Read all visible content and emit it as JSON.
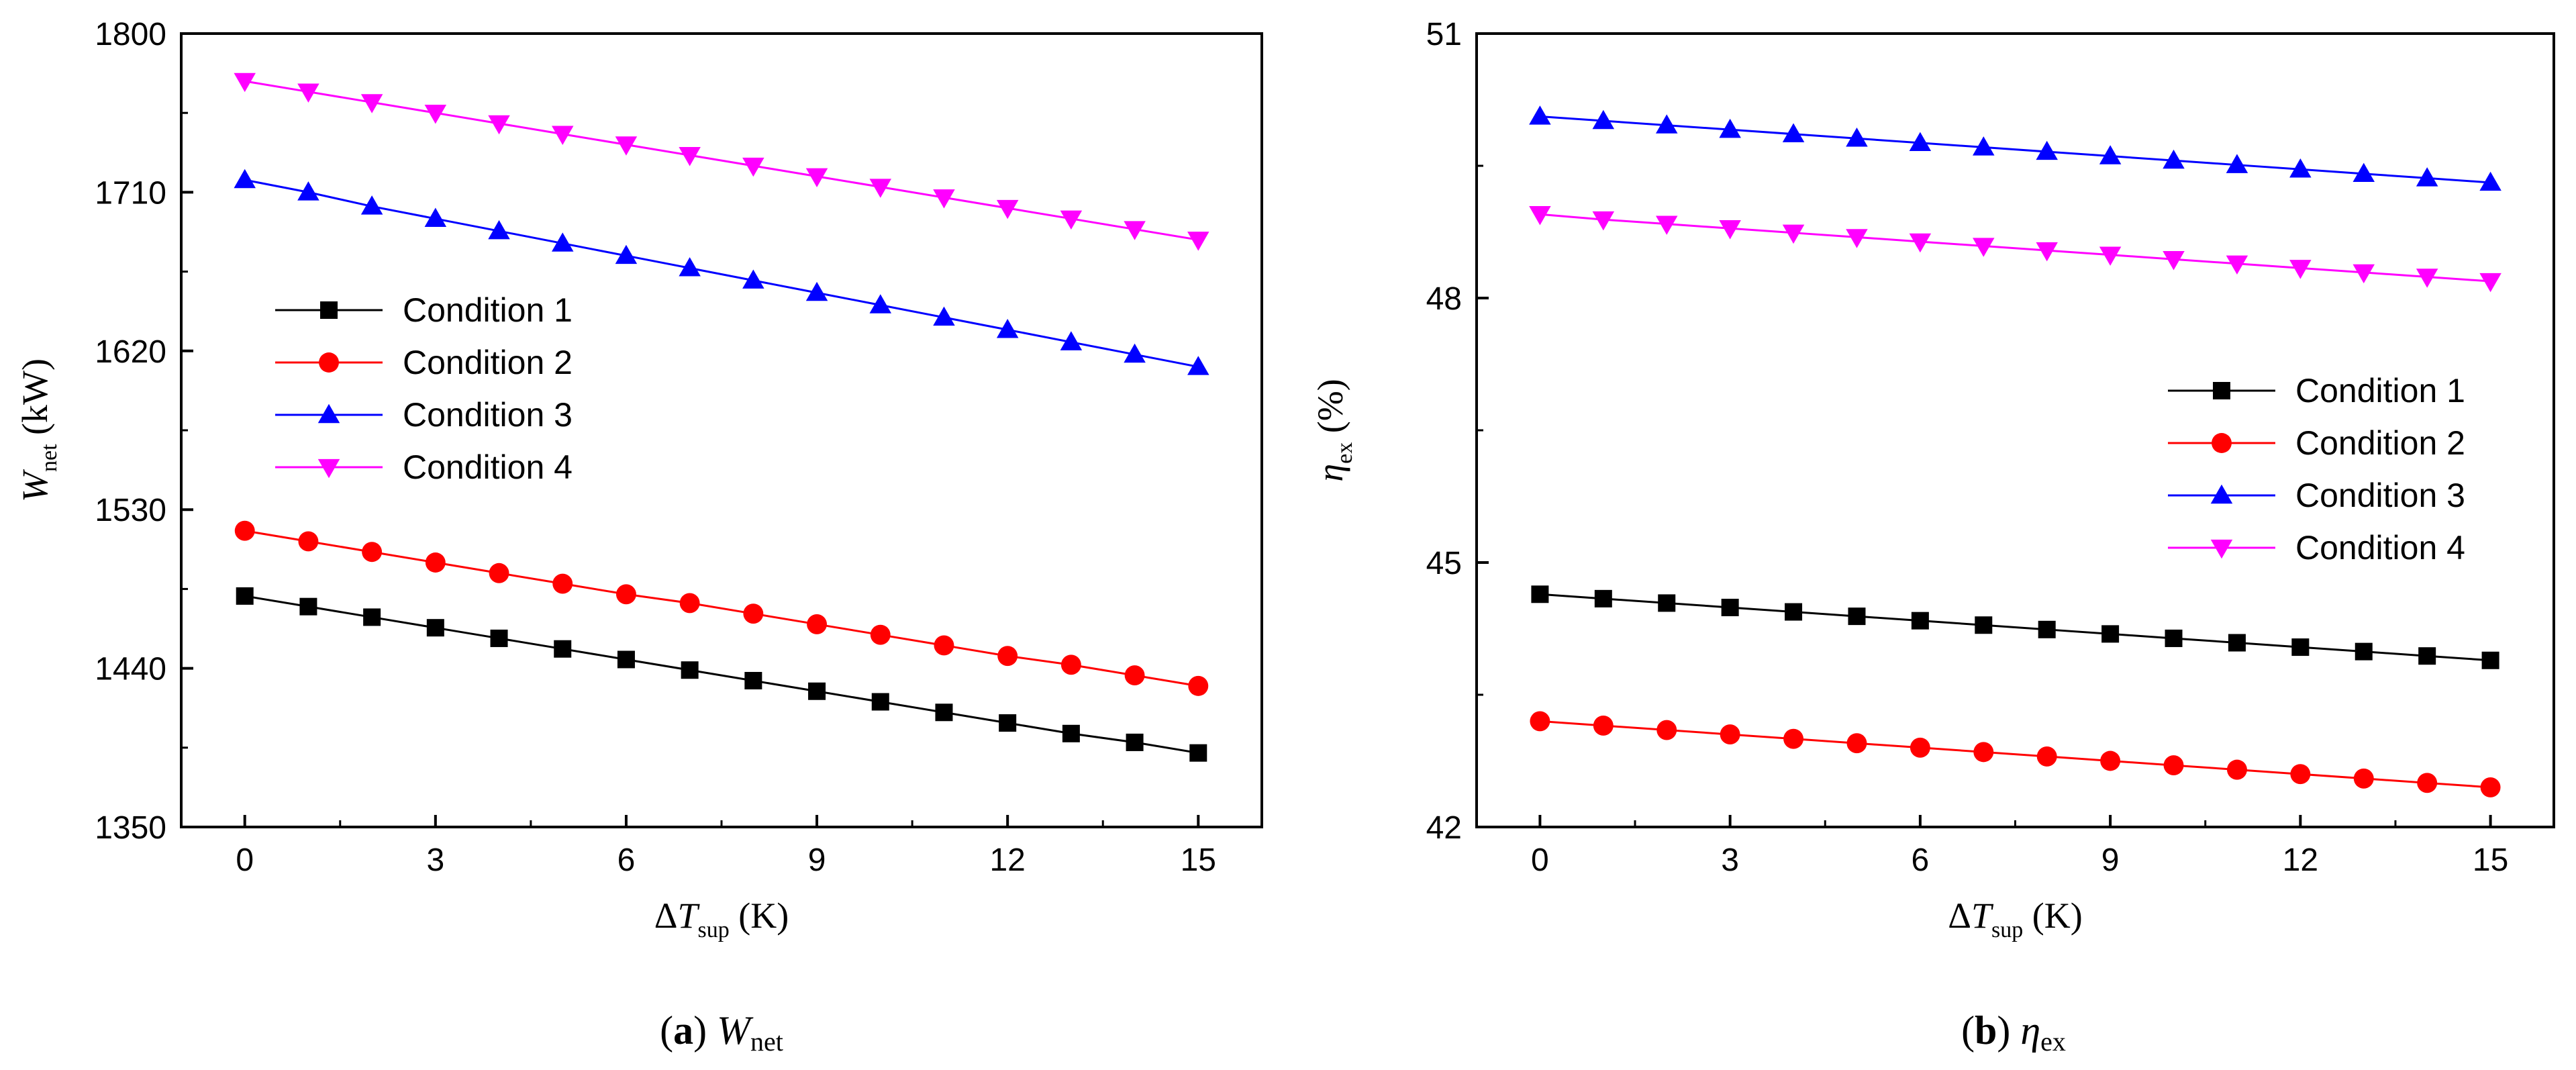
{
  "colors": {
    "c1": "#000000",
    "c2": "#ff0000",
    "c3": "#0000ff",
    "c4": "#ff00ff"
  },
  "legend_labels": [
    "Condition 1",
    "Condition 2",
    "Condition 3",
    "Condition 4"
  ],
  "chart_data": [
    {
      "type": "line",
      "panel": "a",
      "caption": {
        "letter": "a",
        "symbol": "W",
        "subscript": "net"
      },
      "ylabel": {
        "symbol": "W",
        "subscript": "net",
        "unit": " (kW)"
      },
      "xlabel": {
        "symbol": "ΔT",
        "subscript": "sup",
        "unit": " (K)"
      },
      "xlim": [
        -1,
        16
      ],
      "ylim": [
        1350,
        1800
      ],
      "xticks": [
        0,
        3,
        6,
        9,
        12,
        15
      ],
      "yticks": [
        1350,
        1440,
        1530,
        1620,
        1710,
        1800
      ],
      "legend_position": "middle-left",
      "x": [
        0,
        1,
        2,
        3,
        4,
        5,
        6,
        7,
        8,
        9,
        10,
        11,
        12,
        13,
        14,
        15
      ],
      "series": [
        {
          "name": "Condition 1",
          "marker": "square",
          "values": [
            1481,
            1475,
            1469,
            1463,
            1457,
            1451,
            1445,
            1439,
            1433,
            1427,
            1421,
            1415,
            1409,
            1403,
            1398,
            1392
          ]
        },
        {
          "name": "Condition 2",
          "marker": "circle",
          "values": [
            1518,
            1512,
            1506,
            1500,
            1494,
            1488,
            1482,
            1477,
            1471,
            1465,
            1459,
            1453,
            1447,
            1442,
            1436,
            1430
          ]
        },
        {
          "name": "Condition 3",
          "marker": "triangle-up",
          "values": [
            1717,
            1710,
            1702,
            1695,
            1688,
            1681,
            1674,
            1667,
            1660,
            1653,
            1646,
            1639,
            1632,
            1625,
            1618,
            1611
          ]
        },
        {
          "name": "Condition 4",
          "marker": "triangle-down",
          "values": [
            1773,
            1767,
            1761,
            1755,
            1749,
            1743,
            1737,
            1731,
            1725,
            1719,
            1713,
            1707,
            1701,
            1695,
            1689,
            1683
          ]
        }
      ]
    },
    {
      "type": "line",
      "panel": "b",
      "caption": {
        "letter": "b",
        "symbol": "η",
        "subscript": "ex"
      },
      "ylabel": {
        "symbol": "η",
        "subscript": "ex",
        "unit": " (%)"
      },
      "xlabel": {
        "symbol": "ΔT",
        "subscript": "sup",
        "unit": " (K)"
      },
      "xlim": [
        -1,
        16
      ],
      "ylim": [
        42,
        51
      ],
      "xticks": [
        0,
        3,
        6,
        9,
        12,
        15
      ],
      "yticks": [
        42,
        45,
        48,
        51
      ],
      "legend_position": "middle-right",
      "x": [
        0,
        1,
        2,
        3,
        4,
        5,
        6,
        7,
        8,
        9,
        10,
        11,
        12,
        13,
        14,
        15
      ],
      "series": [
        {
          "name": "Condition 1",
          "marker": "square",
          "values": [
            44.64,
            44.59,
            44.54,
            44.49,
            44.44,
            44.39,
            44.34,
            44.29,
            44.24,
            44.19,
            44.14,
            44.09,
            44.04,
            43.99,
            43.94,
            43.89
          ]
        },
        {
          "name": "Condition 2",
          "marker": "circle",
          "values": [
            43.2,
            43.15,
            43.1,
            43.05,
            43.0,
            42.95,
            42.9,
            42.85,
            42.8,
            42.75,
            42.7,
            42.65,
            42.6,
            42.55,
            42.5,
            42.45
          ]
        },
        {
          "name": "Condition 3",
          "marker": "triangle-up",
          "values": [
            50.06,
            50.01,
            49.96,
            49.91,
            49.86,
            49.81,
            49.76,
            49.71,
            49.66,
            49.61,
            49.56,
            49.51,
            49.46,
            49.41,
            49.36,
            49.31
          ]
        },
        {
          "name": "Condition 4",
          "marker": "triangle-down",
          "values": [
            48.95,
            48.89,
            48.84,
            48.79,
            48.74,
            48.69,
            48.64,
            48.59,
            48.54,
            48.49,
            48.44,
            48.39,
            48.34,
            48.29,
            48.24,
            48.19
          ]
        }
      ]
    }
  ]
}
